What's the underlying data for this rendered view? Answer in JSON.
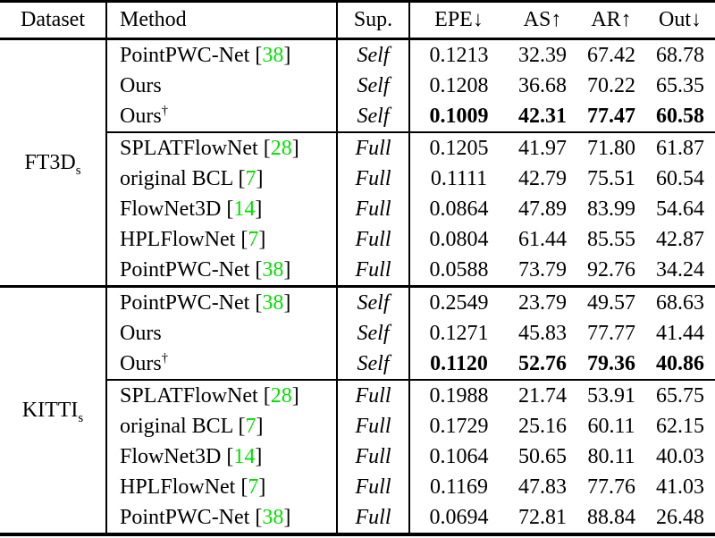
{
  "styles": {
    "citation_color": "#00DF00",
    "text_color": "#000000",
    "background_color": "#ffffff"
  },
  "header": {
    "dataset": "Dataset",
    "method": "Method",
    "sup": "Sup.",
    "metrics": [
      "EPE↓",
      "AS↑",
      "AR↑",
      "Out↓"
    ]
  },
  "groups": [
    {
      "dataset": "FT3D",
      "dataset_subscript": "s",
      "rows": [
        {
          "method": "PointPWC-Net",
          "cite": "38",
          "dagger": "",
          "sup": "Self",
          "values": [
            "0.1213",
            "32.39",
            "67.42",
            "68.78"
          ],
          "bold": false,
          "cline_below": false
        },
        {
          "method": "Ours",
          "cite": "",
          "dagger": "",
          "sup": "Self",
          "values": [
            "0.1208",
            "36.68",
            "70.22",
            "65.35"
          ],
          "bold": false,
          "cline_below": false
        },
        {
          "method": "Ours",
          "cite": "",
          "dagger": "†",
          "sup": "Self",
          "values": [
            "0.1009",
            "42.31",
            "77.47",
            "60.58"
          ],
          "bold": true,
          "cline_below": true
        },
        {
          "method": "SPLATFlowNet",
          "cite": "28",
          "dagger": "",
          "sup": "Full",
          "values": [
            "0.1205",
            "41.97",
            "71.80",
            "61.87"
          ],
          "bold": false,
          "cline_below": false
        },
        {
          "method": "original BCL",
          "cite": "7",
          "dagger": "",
          "sup": "Full",
          "values": [
            "0.1111",
            "42.79",
            "75.51",
            "60.54"
          ],
          "bold": false,
          "cline_below": false
        },
        {
          "method": "FlowNet3D",
          "cite": "14",
          "dagger": "",
          "sup": "Full",
          "values": [
            "0.0864",
            "47.89",
            "83.99",
            "54.64"
          ],
          "bold": false,
          "cline_below": false
        },
        {
          "method": "HPLFlowNet",
          "cite": "7",
          "dagger": "",
          "sup": "Full",
          "values": [
            "0.0804",
            "61.44",
            "85.55",
            "42.87"
          ],
          "bold": false,
          "cline_below": false
        },
        {
          "method": "PointPWC-Net",
          "cite": "38",
          "dagger": "",
          "sup": "Full",
          "values": [
            "0.0588",
            "73.79",
            "92.76",
            "34.24"
          ],
          "bold": false,
          "cline_below": false
        }
      ]
    },
    {
      "dataset": "KITTI",
      "dataset_subscript": "s",
      "rows": [
        {
          "method": "PointPWC-Net",
          "cite": "38",
          "dagger": "",
          "sup": "Self",
          "values": [
            "0.2549",
            "23.79",
            "49.57",
            "68.63"
          ],
          "bold": false,
          "cline_below": false
        },
        {
          "method": "Ours",
          "cite": "",
          "dagger": "",
          "sup": "Self",
          "values": [
            "0.1271",
            "45.83",
            "77.77",
            "41.44"
          ],
          "bold": false,
          "cline_below": false
        },
        {
          "method": "Ours",
          "cite": "",
          "dagger": "†",
          "sup": "Self",
          "values": [
            "0.1120",
            "52.76",
            "79.36",
            "40.86"
          ],
          "bold": true,
          "cline_below": true
        },
        {
          "method": "SPLATFlowNet",
          "cite": "28",
          "dagger": "",
          "sup": "Full",
          "values": [
            "0.1988",
            "21.74",
            "53.91",
            "65.75"
          ],
          "bold": false,
          "cline_below": false
        },
        {
          "method": "original BCL",
          "cite": "7",
          "dagger": "",
          "sup": "Full",
          "values": [
            "0.1729",
            "25.16",
            "60.11",
            "62.15"
          ],
          "bold": false,
          "cline_below": false
        },
        {
          "method": "FlowNet3D",
          "cite": "14",
          "dagger": "",
          "sup": "Full",
          "values": [
            "0.1064",
            "50.65",
            "80.11",
            "40.03"
          ],
          "bold": false,
          "cline_below": false
        },
        {
          "method": "HPLFlowNet",
          "cite": "7",
          "dagger": "",
          "sup": "Full",
          "values": [
            "0.1169",
            "47.83",
            "77.76",
            "41.03"
          ],
          "bold": false,
          "cline_below": false
        },
        {
          "method": "PointPWC-Net",
          "cite": "38",
          "dagger": "",
          "sup": "Full",
          "values": [
            "0.0694",
            "72.81",
            "88.84",
            "26.48"
          ],
          "bold": false,
          "cline_below": false
        }
      ]
    }
  ]
}
